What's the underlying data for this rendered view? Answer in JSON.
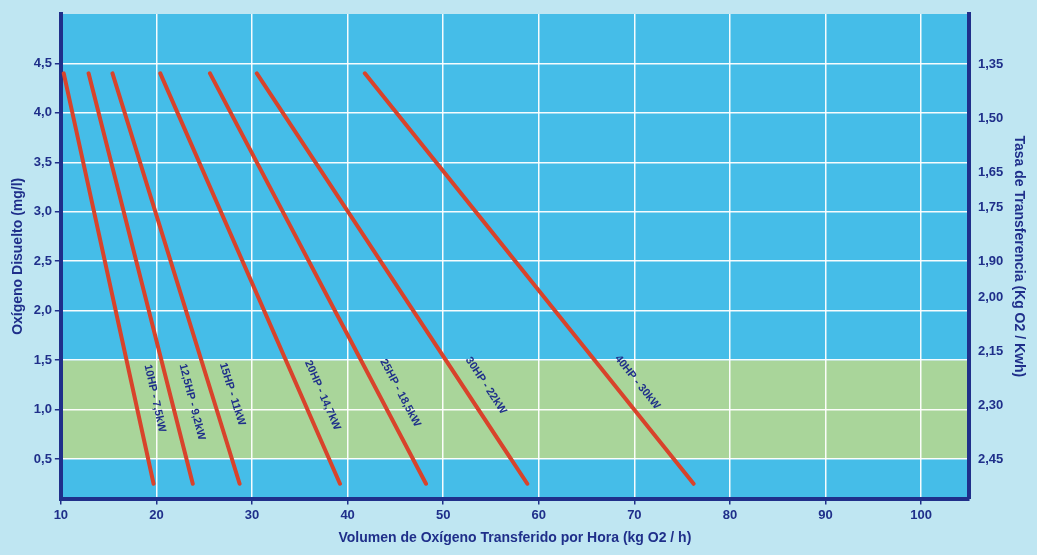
{
  "chart_data": {
    "type": "line",
    "xlabel": "Volumen de Oxígeno Transferido por Hora (kg O2 / h)",
    "ylabel": "Oxígeno Disuelto (mg/l)",
    "y2label": "Tasa de Transferencia (Kg O2 / Kwh)",
    "xlim": [
      10,
      105
    ],
    "xticks": [
      10,
      20,
      30,
      40,
      50,
      60,
      70,
      80,
      90,
      100
    ],
    "ylim": [
      0.1,
      5
    ],
    "yticks": [
      {
        "value": 0.5,
        "label": "0,5"
      },
      {
        "value": 1,
        "label": "1,0"
      },
      {
        "value": 1.5,
        "label": "1,5"
      },
      {
        "value": 2,
        "label": "2,0"
      },
      {
        "value": 2.5,
        "label": "2,5"
      },
      {
        "value": 3,
        "label": "3,0"
      },
      {
        "value": 3.5,
        "label": "3,5"
      },
      {
        "value": 4,
        "label": "4,0"
      },
      {
        "value": 4.5,
        "label": "4,5"
      }
    ],
    "y2lim": [
      2.56,
      1.21
    ],
    "y2ticks": [
      {
        "value": 2.45,
        "label": "2,45"
      },
      {
        "value": 2.3,
        "label": "2,30"
      },
      {
        "value": 2.15,
        "label": "2,15"
      },
      {
        "value": 2,
        "label": "2,00"
      },
      {
        "value": 1.9,
        "label": "1,90"
      },
      {
        "value": 1.75,
        "label": "1,75"
      },
      {
        "value": 1.65,
        "label": "1,65"
      },
      {
        "value": 1.5,
        "label": "1,50"
      },
      {
        "value": 1.35,
        "label": "1,35"
      }
    ],
    "grid": true,
    "line_style": "solid",
    "marker": "none",
    "legend": false,
    "bands": [
      {
        "axis": "y",
        "from": 0.5,
        "to": 1.5,
        "label": null,
        "color": "#a9d59a"
      }
    ],
    "series": [
      {
        "name": "10HP - 7,5kW",
        "color": "#d8432b",
        "x": [
          10.3,
          19.7
        ],
        "values": [
          4.4,
          0.25
        ]
      },
      {
        "name": "12,5HP - 9,2kW",
        "color": "#d8432b",
        "x": [
          12.9,
          23.8
        ],
        "values": [
          4.4,
          0.25
        ]
      },
      {
        "name": "15HP - 11kW",
        "color": "#d8432b",
        "x": [
          15.4,
          28.7
        ],
        "values": [
          4.4,
          0.25
        ]
      },
      {
        "name": "20HP - 14,7kW",
        "color": "#d8432b",
        "x": [
          20.4,
          39.2
        ],
        "values": [
          4.4,
          0.25
        ]
      },
      {
        "name": "25HP - 18,5kW",
        "color": "#d8432b",
        "x": [
          25.6,
          48.2
        ],
        "values": [
          4.4,
          0.25
        ]
      },
      {
        "name": "30HP - 22kW",
        "color": "#d8432b",
        "x": [
          30.5,
          58.8
        ],
        "values": [
          4.4,
          0.25
        ]
      },
      {
        "name": "40HP - 30kW",
        "color": "#d8432b",
        "x": [
          41.8,
          76.2
        ],
        "values": [
          4.4,
          0.25
        ]
      }
    ]
  }
}
